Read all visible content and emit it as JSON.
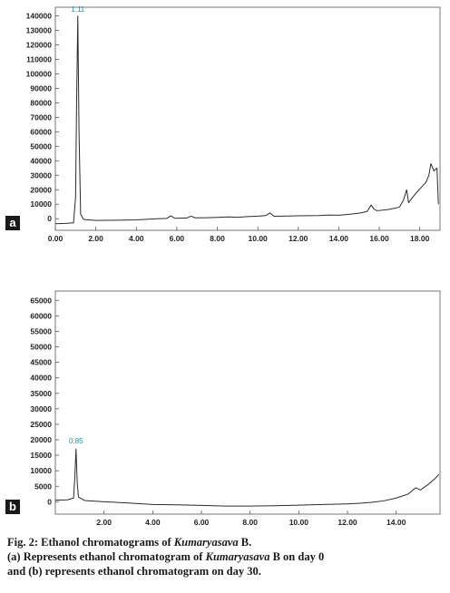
{
  "caption": {
    "line1_pre": "Fig. 2: Ethanol chromatograms of ",
    "line1_ital": "Kumaryasava",
    "line1_post": " B.",
    "line2_pre": "(a) Represents ethanol chromatogram of ",
    "line2_ital": "Kumaryasava",
    "line2_post": " B on day 0",
    "line3": "and (b) represents ethanol chromatogram on day 30."
  },
  "chart_data": [
    {
      "type": "line",
      "panel_label": "a",
      "xlim": [
        0,
        19
      ],
      "ylim": [
        -8000,
        146000
      ],
      "x_ticks": [
        "0.00",
        "2.00",
        "4.00",
        "6.00",
        "8.00",
        "10.00",
        "12.00",
        "14.00",
        "16.00",
        "18.00"
      ],
      "x_tick_values": [
        0,
        2,
        4,
        6,
        8,
        10,
        12,
        14,
        16,
        18
      ],
      "y_ticks": [
        "0",
        "10000",
        "20000",
        "30000",
        "40000",
        "50000",
        "60000",
        "70000",
        "80000",
        "90000",
        "100000",
        "110000",
        "120000",
        "130000",
        "140000"
      ],
      "y_tick_values": [
        0,
        10000,
        20000,
        30000,
        40000,
        50000,
        60000,
        70000,
        80000,
        90000,
        100000,
        110000,
        120000,
        130000,
        140000
      ],
      "peak_label": "1.11",
      "peak_label_x": 1.11,
      "peak_label_y": 143000,
      "series": [
        {
          "x": [
            0.0,
            0.5,
            0.9,
            1.0,
            1.05,
            1.11,
            1.17,
            1.25,
            1.4,
            2.0,
            3.0,
            4.0,
            5.0,
            5.5,
            5.7,
            5.9,
            6.5,
            6.7,
            6.9,
            7.5,
            8.0,
            8.5,
            9.0,
            9.5,
            10.0,
            10.4,
            10.6,
            10.8,
            11.5,
            12.0,
            13.0,
            13.5,
            14.0,
            14.5,
            15.0,
            15.4,
            15.6,
            15.75,
            15.9,
            16.5,
            17.0,
            17.2,
            17.35,
            17.45,
            17.6,
            17.9,
            18.1,
            18.3,
            18.45,
            18.55,
            18.7,
            18.85,
            18.92
          ],
          "y": [
            -3500,
            -3200,
            -2800,
            15000,
            80000,
            140000,
            60000,
            3000,
            -500,
            -1200,
            -1000,
            -800,
            0,
            200,
            2000,
            300,
            500,
            1800,
            600,
            700,
            900,
            1200,
            1000,
            1500,
            1800,
            2200,
            4000,
            1700,
            1900,
            2000,
            2200,
            2600,
            2400,
            3000,
            3800,
            5000,
            9500,
            6500,
            5500,
            6500,
            8000,
            13000,
            20000,
            11000,
            14000,
            19000,
            22000,
            25000,
            30000,
            38000,
            33000,
            35000,
            10000
          ]
        }
      ]
    },
    {
      "type": "line",
      "panel_label": "b",
      "xlim": [
        0,
        15.8
      ],
      "ylim": [
        -4000,
        68000
      ],
      "x_ticks": [
        "2.00",
        "4.00",
        "6.00",
        "8.00",
        "10.00",
        "12.00",
        "14.00"
      ],
      "x_tick_values": [
        2,
        4,
        6,
        8,
        10,
        12,
        14
      ],
      "y_ticks": [
        "0",
        "5000",
        "10000",
        "15000",
        "20000",
        "25000",
        "30000",
        "35000",
        "40000",
        "45000",
        "50000",
        "55000",
        "60000",
        "65000"
      ],
      "y_tick_values": [
        0,
        5000,
        10000,
        15000,
        20000,
        25000,
        30000,
        35000,
        40000,
        45000,
        50000,
        55000,
        60000,
        65000
      ],
      "peak_label": "0.85",
      "peak_label_x": 0.85,
      "peak_label_y": 18800,
      "series": [
        {
          "x": [
            0.0,
            0.5,
            0.75,
            0.8,
            0.85,
            0.9,
            0.95,
            1.2,
            2.0,
            3.0,
            4.0,
            5.0,
            6.0,
            7.0,
            8.0,
            9.0,
            10.0,
            11.0,
            12.0,
            12.5,
            13.0,
            13.5,
            14.0,
            14.5,
            14.8,
            15.0,
            15.3,
            15.6,
            15.75
          ],
          "y": [
            500,
            600,
            1200,
            8000,
            17000,
            6000,
            1500,
            400,
            0,
            -400,
            -900,
            -1000,
            -1200,
            -1400,
            -1400,
            -1300,
            -1100,
            -900,
            -700,
            -500,
            -200,
            300,
            1200,
            2500,
            4500,
            3800,
            5500,
            7500,
            8800
          ]
        }
      ]
    }
  ]
}
